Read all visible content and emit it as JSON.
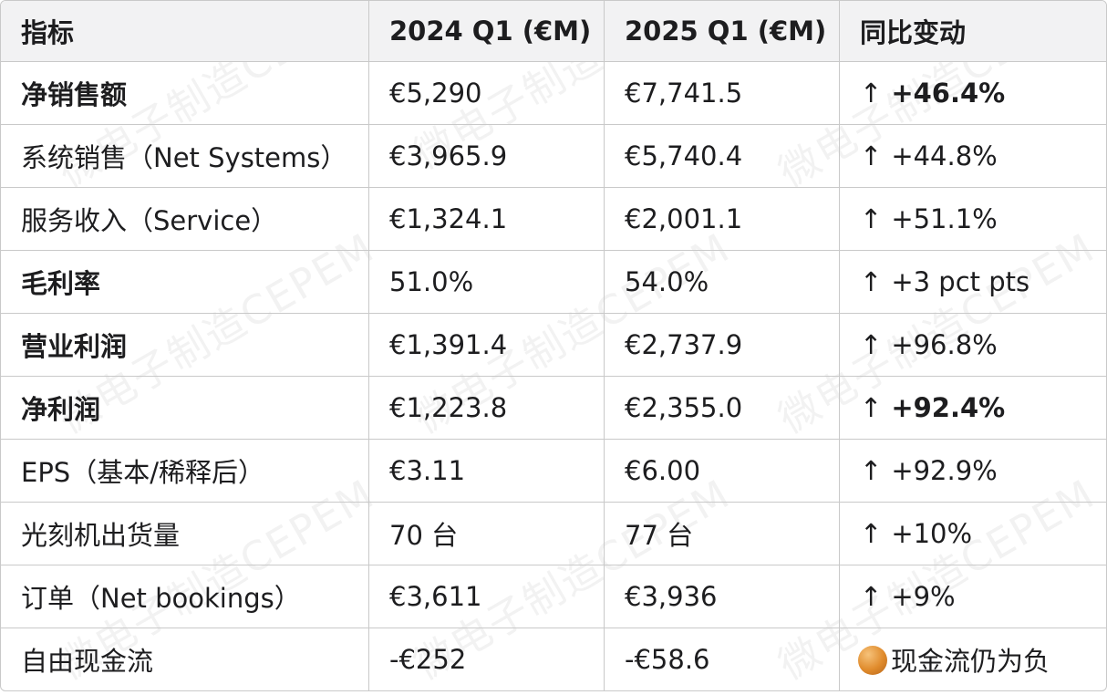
{
  "table": {
    "headers": [
      "指标",
      "2024 Q1 (€M)",
      "2025 Q1 (€M)",
      "同比变动"
    ],
    "rows": [
      {
        "metric": "净销售额",
        "q1_2024": "€5,290",
        "q1_2025": "€7,741.5",
        "arrow": "↑",
        "change": "+46.4%"
      },
      {
        "metric": "系统销售（Net Systems）",
        "q1_2024": "€3,965.9",
        "q1_2025": "€5,740.4",
        "arrow": "↑",
        "change": "+44.8%"
      },
      {
        "metric": "服务收入（Service）",
        "q1_2024": "€1,324.1",
        "q1_2025": "€2,001.1",
        "arrow": "↑",
        "change": "+51.1%"
      },
      {
        "metric": "毛利率",
        "q1_2024": "51.0%",
        "q1_2025": "54.0%",
        "arrow": "↑",
        "change": "+3 pct pts"
      },
      {
        "metric": "营业利润",
        "q1_2024": "€1,391.4",
        "q1_2025": "€2,737.9",
        "arrow": "↑",
        "change": "+96.8%"
      },
      {
        "metric": "净利润",
        "q1_2024": "€1,223.8",
        "q1_2025": "€2,355.0",
        "arrow": "↑",
        "change": "+92.4%"
      },
      {
        "metric": "EPS（基本/稀释后）",
        "q1_2024": "€3.11",
        "q1_2025": "€6.00",
        "arrow": "↑",
        "change": "+92.9%"
      },
      {
        "metric": "光刻机出货量",
        "q1_2024": "70 台",
        "q1_2025": "77 台",
        "arrow": "↑",
        "change": "+10%"
      },
      {
        "metric": "订单（Net bookings）",
        "q1_2024": "€3,611",
        "q1_2025": "€3,936",
        "arrow": "↑",
        "change": "+9%"
      },
      {
        "metric": "自由现金流",
        "q1_2024": "-€252",
        "q1_2025": "-€58.6",
        "note_icon": "orange-circle-icon",
        "change": "现金流仍为负"
      }
    ]
  },
  "watermark": "微电子制造CEPEM"
}
